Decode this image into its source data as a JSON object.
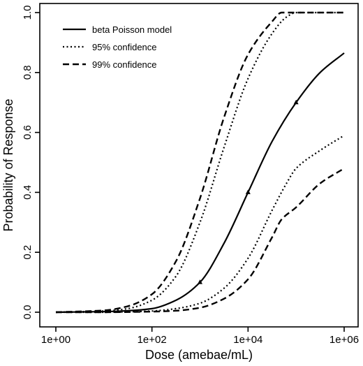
{
  "chart_data": {
    "type": "line",
    "xlabel": "Dose (amebae/mL)",
    "ylabel": "Probability of Response",
    "x_scale": "log10",
    "xlim": [
      1,
      1000000
    ],
    "ylim": [
      0,
      1
    ],
    "grid": false,
    "x_ticks": [
      {
        "value": 1,
        "label": "1e+00"
      },
      {
        "value": 100,
        "label": "1e+02"
      },
      {
        "value": 10000,
        "label": "1e+04"
      },
      {
        "value": 1000000,
        "label": "1e+06"
      }
    ],
    "y_ticks": [
      {
        "value": 0.0,
        "label": "0.0"
      },
      {
        "value": 0.2,
        "label": "0.2"
      },
      {
        "value": 0.4,
        "label": "0.4"
      },
      {
        "value": 0.6,
        "label": "0.6"
      },
      {
        "value": 0.8,
        "label": "0.8"
      },
      {
        "value": 1.0,
        "label": "1.0"
      }
    ],
    "legend": {
      "placement": "top-left",
      "entries": [
        {
          "label": "beta Poisson model",
          "series": "model",
          "dash": "solid"
        },
        {
          "label": "95% confidence",
          "series": "ci95",
          "dash": "dotted"
        },
        {
          "label": "99% confidence",
          "series": "ci99",
          "dash": "dashed"
        }
      ]
    },
    "series": [
      {
        "id": "model",
        "dash": "solid",
        "color": "#000000",
        "x": [
          1,
          10,
          31.6,
          100,
          316,
          1000,
          3162,
          10000,
          31623,
          100000,
          316228,
          1000000
        ],
        "y": [
          0.0,
          0.002,
          0.005,
          0.012,
          0.04,
          0.1,
          0.23,
          0.4,
          0.57,
          0.7,
          0.8,
          0.865
        ]
      },
      {
        "id": "ci95_upper",
        "dash": "dotted",
        "color": "#000000",
        "x": [
          1,
          10,
          31.6,
          100,
          316,
          1000,
          3162,
          10000,
          31623,
          63096,
          100000,
          316228,
          1000000
        ],
        "y": [
          0.0,
          0.004,
          0.012,
          0.04,
          0.12,
          0.3,
          0.55,
          0.78,
          0.93,
          0.985,
          1.0,
          1.0,
          1.0
        ]
      },
      {
        "id": "ci95_lower",
        "dash": "dotted",
        "color": "#000000",
        "x": [
          1,
          10,
          100,
          316,
          1000,
          3162,
          10000,
          31623,
          63096,
          100000,
          316228,
          1000000
        ],
        "y": [
          0.0,
          0.0,
          0.004,
          0.012,
          0.03,
          0.08,
          0.18,
          0.34,
          0.43,
          0.48,
          0.54,
          0.59
        ]
      },
      {
        "id": "ci99_upper",
        "dash": "dashed",
        "color": "#000000",
        "x": [
          1,
          10,
          31.6,
          100,
          316,
          1000,
          3162,
          10000,
          31623,
          50119,
          100000,
          316228,
          1000000
        ],
        "y": [
          0.0,
          0.006,
          0.02,
          0.06,
          0.17,
          0.38,
          0.65,
          0.86,
          0.97,
          1.0,
          1.0,
          1.0,
          1.0
        ]
      },
      {
        "id": "ci99_lower",
        "dash": "dashed",
        "color": "#000000",
        "x": [
          1,
          10,
          100,
          316,
          1000,
          3162,
          10000,
          31623,
          50119,
          100000,
          316228,
          1000000
        ],
        "y": [
          0.0,
          0.0,
          0.002,
          0.005,
          0.015,
          0.045,
          0.11,
          0.25,
          0.31,
          0.35,
          0.43,
          0.48
        ]
      }
    ],
    "points": {
      "x": [
        1000,
        10000,
        100000
      ],
      "y": [
        0.1,
        0.4,
        0.7
      ]
    }
  }
}
